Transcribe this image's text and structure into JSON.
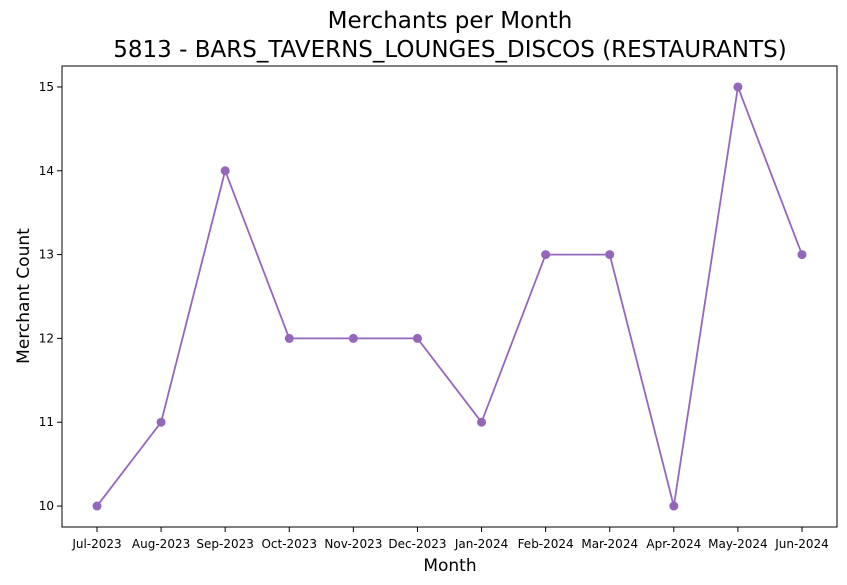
{
  "chart_data": {
    "type": "line",
    "title": "Merchants per Month",
    "subtitle": "5813 - BARS_TAVERNS_LOUNGES_DISCOS (RESTAURANTS)",
    "xlabel": "Month",
    "ylabel": "Merchant Count",
    "categories": [
      "Jul-2023",
      "Aug-2023",
      "Sep-2023",
      "Oct-2023",
      "Nov-2023",
      "Dec-2023",
      "Jan-2024",
      "Feb-2024",
      "Mar-2024",
      "Apr-2024",
      "May-2024",
      "Jun-2024"
    ],
    "series": [
      {
        "values": [
          10,
          11,
          14,
          12,
          12,
          12,
          11,
          13,
          13,
          10,
          15,
          13
        ],
        "color": "#9467bd",
        "marker": "circle"
      }
    ],
    "ylim": [
      9.75,
      15.25
    ],
    "yticks": [
      10,
      11,
      12,
      13,
      14,
      15
    ],
    "grid": false,
    "legend": "none"
  }
}
